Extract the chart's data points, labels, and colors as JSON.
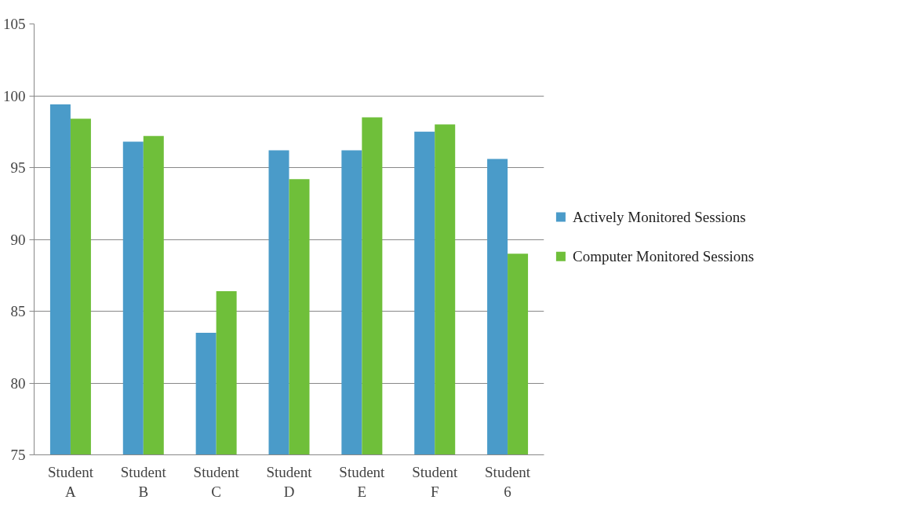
{
  "chart_data": {
    "type": "bar",
    "categories": [
      "Student A",
      "Student B",
      "Student C",
      "Student D",
      "Student E",
      "Student F",
      "Student 6"
    ],
    "series": [
      {
        "name": "Actively Monitored Sessions",
        "color": "#4a9bc9",
        "values": [
          99.4,
          96.8,
          83.5,
          96.2,
          96.2,
          97.5,
          95.6
        ]
      },
      {
        "name": "Computer Monitored Sessions",
        "color": "#6fbf3a",
        "values": [
          98.4,
          97.2,
          86.4,
          94.2,
          98.5,
          98.0,
          89.0
        ]
      }
    ],
    "ylim": [
      75,
      105
    ],
    "yticks": [
      75,
      80,
      85,
      90,
      95,
      100,
      105
    ],
    "grid": "y",
    "legend": "right"
  }
}
